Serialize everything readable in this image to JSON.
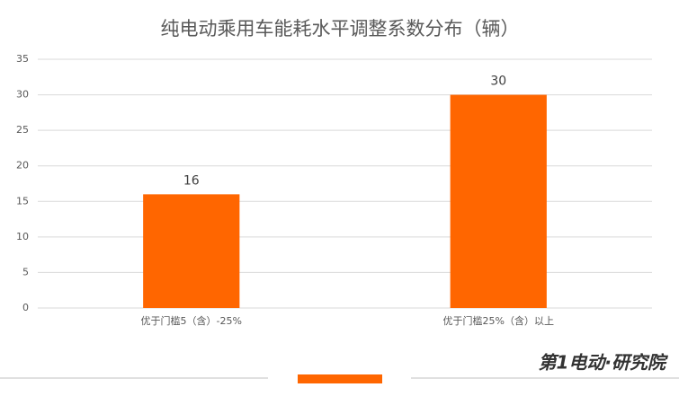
{
  "chart_data": {
    "type": "bar",
    "title": "纯电动乘用车能耗水平调整系数分布（辆）",
    "categories": [
      "优于门槛5（含）-25%",
      "优于门槛25%（含）以上"
    ],
    "values": [
      16,
      30
    ],
    "color": "#ff6600",
    "ylim": [
      0,
      35
    ],
    "yticks": [
      0,
      5,
      10,
      15,
      20,
      25,
      30,
      35
    ],
    "grid": true,
    "watermark": "第1电动·研究院"
  }
}
